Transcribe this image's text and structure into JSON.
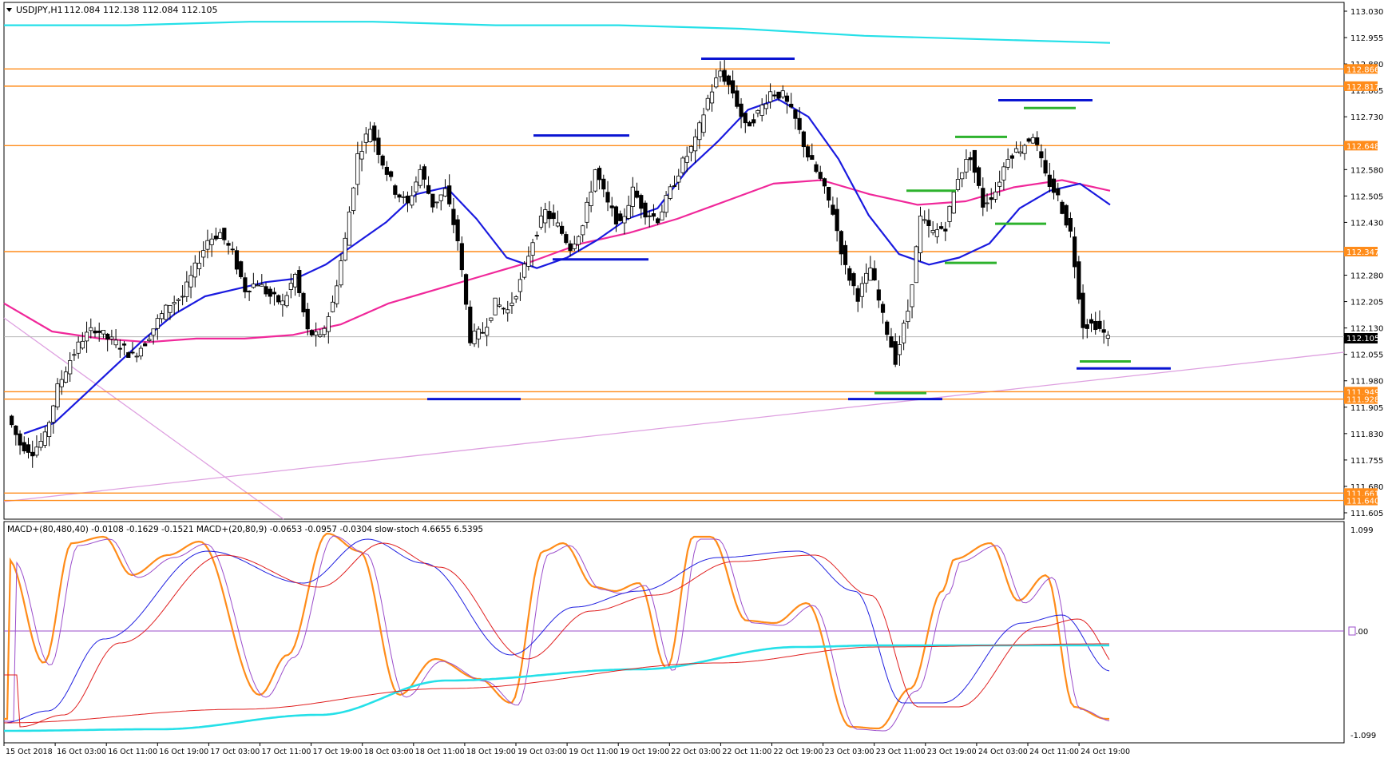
{
  "symbol_info": "USDJPY,H1",
  "ohlc_values": "112.084 112.138 112.084 112.105",
  "indicator_info": "MACD+(80,480,40) -0.0108 -0.1629 -0.1521  MACD+(20,80,9) -0.0653 -0.0957 -0.0304  slow-stoch 4.6655 6.5395",
  "current_price_label": "112.105",
  "colors": {
    "level_line": "#ff8c1a",
    "sma_blue": "#1a1adf",
    "sma_pink": "#f0289a",
    "ma_cyan": "#25e0e8",
    "trendline": "#dea0e0",
    "support_blue": "#0a14d2",
    "marker_green": "#2db22d"
  },
  "chart_data": {
    "type": "candlestick",
    "price_axis": {
      "range": [
        111.605,
        113.03
      ],
      "tick_labels": [
        "113.030",
        "112.955",
        "112.880",
        "112.805",
        "112.730",
        "112.580",
        "112.505",
        "112.430",
        "112.280",
        "112.205",
        "112.130",
        "112.055",
        "111.980",
        "111.905",
        "111.830",
        "111.755",
        "111.680",
        "111.605"
      ]
    },
    "time_axis": {
      "labels": [
        "15 Oct 2018",
        "16 Oct 03:00",
        "16 Oct 11:00",
        "16 Oct 19:00",
        "17 Oct 03:00",
        "17 Oct 11:00",
        "17 Oct 19:00",
        "18 Oct 03:00",
        "18 Oct 11:00",
        "18 Oct 19:00",
        "19 Oct 03:00",
        "19 Oct 11:00",
        "19 Oct 19:00",
        "22 Oct 03:00",
        "22 Oct 11:00",
        "22 Oct 19:00",
        "23 Oct 03:00",
        "23 Oct 11:00",
        "23 Oct 19:00",
        "24 Oct 03:00",
        "24 Oct 11:00",
        "24 Oct 19:00"
      ]
    },
    "level_lines": [
      112.866,
      112.817,
      112.648,
      112.347,
      111.949,
      111.928,
      111.661,
      111.64
    ],
    "candles_close_path": [
      111.88,
      111.8,
      111.78,
      111.82,
      111.96,
      112.04,
      112.1,
      112.13,
      112.1,
      112.08,
      112.05,
      112.09,
      112.15,
      112.2,
      112.22,
      112.3,
      112.38,
      112.4,
      112.34,
      112.24,
      112.26,
      112.22,
      112.2,
      112.28,
      112.12,
      112.1,
      112.2,
      112.38,
      112.62,
      112.7,
      112.6,
      112.52,
      112.48,
      112.58,
      112.48,
      112.52,
      112.38,
      112.1,
      112.12,
      112.2,
      112.18,
      112.26,
      112.38,
      112.46,
      112.42,
      112.36,
      112.42,
      112.58,
      112.48,
      112.42,
      112.52,
      112.46,
      112.44,
      112.52,
      112.6,
      112.66,
      112.78,
      112.86,
      112.8,
      112.7,
      112.74,
      112.8,
      112.79,
      112.72,
      112.62,
      112.55,
      112.46,
      112.3,
      112.22,
      112.3,
      112.16,
      112.04,
      112.18,
      112.44,
      112.4,
      112.42,
      112.56,
      112.62,
      112.48,
      112.52,
      112.62,
      112.64,
      112.68,
      112.56,
      112.5,
      112.4,
      112.14,
      112.14,
      112.1
    ],
    "moving_averages": {
      "blue_sma": [
        111.83,
        111.86,
        111.94,
        112.02,
        112.1,
        112.17,
        112.22,
        112.24,
        112.26,
        112.27,
        112.31,
        112.37,
        112.43,
        112.51,
        112.53,
        112.44,
        112.33,
        112.3,
        112.33,
        112.38,
        112.44,
        112.47,
        112.58,
        112.66,
        112.75,
        112.78,
        112.73,
        112.61,
        112.45,
        112.34,
        112.31,
        112.33,
        112.37,
        112.47,
        112.52,
        112.54,
        112.48
      ],
      "pink_ema": [
        112.2,
        112.12,
        112.1,
        112.09,
        112.1,
        112.1,
        112.11,
        112.14,
        112.2,
        112.24,
        112.28,
        112.32,
        112.37,
        112.4,
        112.44,
        112.49,
        112.54,
        112.55,
        112.51,
        112.48,
        112.49,
        112.53,
        112.55,
        112.52
      ],
      "cyan_ma": [
        112.99,
        112.99,
        113.0,
        113.0,
        112.99,
        112.99,
        112.98,
        112.96,
        112.95,
        112.94
      ]
    },
    "supports_resistances": [
      {
        "type": "resistance",
        "price": 112.89
      },
      {
        "type": "resistance",
        "price": 112.68
      },
      {
        "type": "support",
        "price": 111.93
      },
      {
        "type": "support",
        "price": 112.35
      },
      {
        "type": "support",
        "price": 111.93
      },
      {
        "type": "resistance",
        "price": 112.77
      },
      {
        "type": "support",
        "price": 112.02
      }
    ],
    "macd_axis": {
      "tick_labels": [
        "1.099",
        "0.00",
        "-1.099"
      ],
      "range": [
        -1.099,
        1.099
      ]
    }
  }
}
